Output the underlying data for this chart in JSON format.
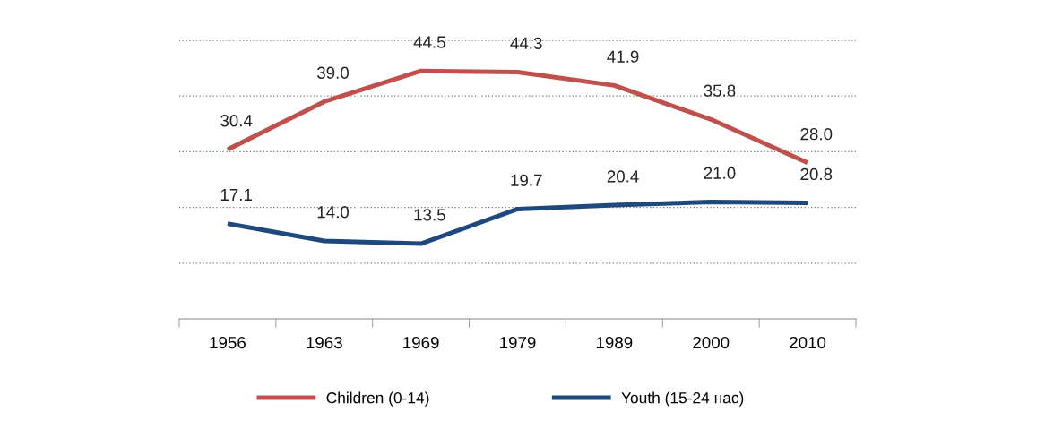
{
  "chart_data": {
    "type": "line",
    "categories": [
      "1956",
      "1963",
      "1969",
      "1979",
      "1989",
      "2000",
      "2010"
    ],
    "series": [
      {
        "name": "Children (0-14)",
        "color": "#c0504d",
        "values": [
          30.4,
          39.0,
          44.5,
          44.3,
          41.9,
          35.8,
          28.0
        ],
        "value_labels": [
          "30.4",
          "39.0",
          "44.5",
          "44.3",
          "41.9",
          "35.8",
          "28.0"
        ]
      },
      {
        "name": "Youth (15-24 нас)",
        "color": "#1f497d",
        "values": [
          17.1,
          14.0,
          13.5,
          19.7,
          20.4,
          21.0,
          20.8
        ],
        "value_labels": [
          "17.1",
          "14.0",
          "13.5",
          "19.7",
          "20.4",
          "21.0",
          "20.8"
        ]
      }
    ],
    "ylim": [
      0,
      50
    ],
    "yticks": [
      {
        "value": 10,
        "label": null
      },
      {
        "value": 20,
        "label": null
      },
      {
        "value": 30,
        "label": null
      },
      {
        "value": 40,
        "label": null
      },
      {
        "value": 50,
        "label": null
      }
    ],
    "tick_labels": "x",
    "grid": "y",
    "legend": "bottom",
    "marker": "none",
    "line_style": "solid"
  }
}
